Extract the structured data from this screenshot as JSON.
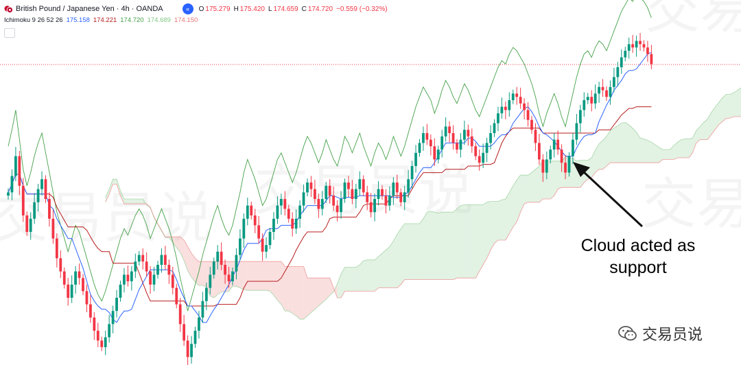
{
  "header": {
    "symbol": "British Pound / Japanese Yen · 4h · OANDA",
    "ohlc": [
      {
        "label": "O",
        "value": "175.279"
      },
      {
        "label": "H",
        "value": "175.420"
      },
      {
        "label": "L",
        "value": "174.659"
      },
      {
        "label": "C",
        "value": "174.720"
      }
    ],
    "change": "−0.559 (−0.32%)"
  },
  "indicator": {
    "name": "Ichimoku 9 26 52 26",
    "values": [
      {
        "value": "175.158",
        "color": "#2962ff"
      },
      {
        "value": "174.221",
        "color": "#b71c1c"
      },
      {
        "value": "174.720",
        "color": "#43a047"
      },
      {
        "value": "174.689",
        "color": "#a5d6a7"
      },
      {
        "value": "174.150",
        "color": "#ef9a9a"
      }
    ]
  },
  "annotation": {
    "line1": "Cloud acted as",
    "line2": "support"
  },
  "watermark": "交易员说",
  "brand": "交易员说",
  "colors": {
    "up": "#089981",
    "down": "#f23645",
    "conversion": "#2962ff",
    "base": "#b71c1c",
    "lagging": "#43a047",
    "cloud_bull": "#a5d6a7",
    "cloud_bear": "#ef9a9a"
  },
  "chart_data": {
    "type": "candlestick",
    "instrument": "GBP/JPY",
    "timeframe": "4h",
    "last_close": 174.72,
    "closes": [
      0.52,
      0.57,
      0.63,
      0.54,
      0.45,
      0.4,
      0.44,
      0.49,
      0.53,
      0.56,
      0.5,
      0.44,
      0.38,
      0.32,
      0.28,
      0.24,
      0.2,
      0.24,
      0.28,
      0.26,
      0.22,
      0.18,
      0.14,
      0.1,
      0.07,
      0.05,
      0.08,
      0.12,
      0.16,
      0.2,
      0.24,
      0.27,
      0.25,
      0.28,
      0.31,
      0.33,
      0.31,
      0.28,
      0.24,
      0.27,
      0.3,
      0.33,
      0.3,
      0.27,
      0.23,
      0.18,
      0.12,
      0.07,
      0.02,
      0.06,
      0.1,
      0.14,
      0.19,
      0.23,
      0.27,
      0.31,
      0.34,
      0.3,
      0.27,
      0.25,
      0.28,
      0.33,
      0.38,
      0.44,
      0.48,
      0.45,
      0.42,
      0.38,
      0.34,
      0.36,
      0.4,
      0.44,
      0.48,
      0.5,
      0.47,
      0.44,
      0.41,
      0.44,
      0.48,
      0.52,
      0.55,
      0.53,
      0.5,
      0.47,
      0.5,
      0.54,
      0.51,
      0.48,
      0.46,
      0.5,
      0.55,
      0.53,
      0.5,
      0.53,
      0.56,
      0.52,
      0.49,
      0.46,
      0.5,
      0.53,
      0.51,
      0.48,
      0.51,
      0.55,
      0.52,
      0.49,
      0.52,
      0.56,
      0.6,
      0.64,
      0.67,
      0.7,
      0.68,
      0.66,
      0.62,
      0.65,
      0.69,
      0.72,
      0.7,
      0.67,
      0.65,
      0.68,
      0.71,
      0.69,
      0.66,
      0.63,
      0.61,
      0.64,
      0.67,
      0.7,
      0.73,
      0.76,
      0.78,
      0.77,
      0.8,
      0.82,
      0.81,
      0.79,
      0.77,
      0.74,
      0.71,
      0.67,
      0.62,
      0.58,
      0.62,
      0.65,
      0.68,
      0.65,
      0.61,
      0.58,
      0.63,
      0.68,
      0.73,
      0.77,
      0.8,
      0.81,
      0.79,
      0.82,
      0.84,
      0.83,
      0.81,
      0.84,
      0.87,
      0.9,
      0.93,
      0.95,
      0.97,
      0.96,
      0.98,
      0.97,
      0.96,
      0.94,
      0.91
    ]
  }
}
